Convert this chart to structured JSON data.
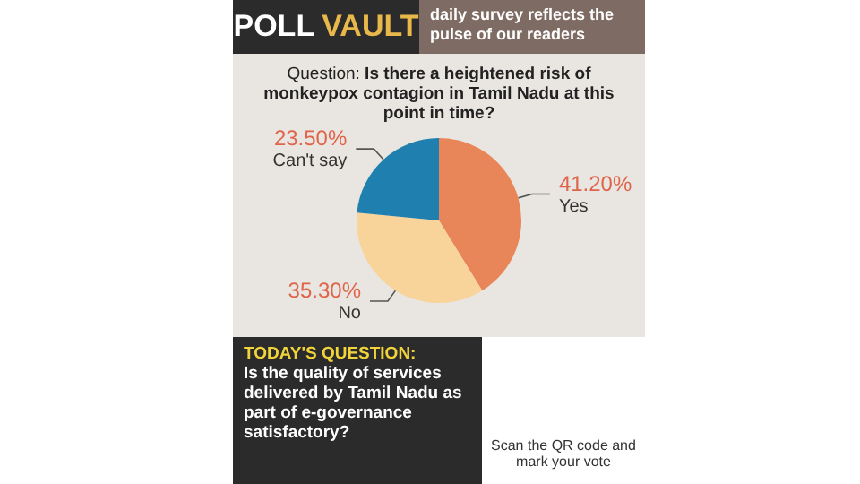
{
  "chart_data": {
    "type": "pie",
    "title": "POLL VAULT",
    "subtitle": "daily survey reflects the pulse of our readers",
    "annotations": [
      "Question: Is there a heightened risk of monkeypox contagion in Tamil Nadu at this point in time?",
      "TODAY'S QUESTION:",
      "Is the quality of services delivered by Tamil Nadu as part of e-governance satisfactory?",
      "Scan the QR code and mark your vote"
    ],
    "categories": [
      "Yes",
      "No",
      "Can't say"
    ],
    "values": [
      41.2,
      35.3,
      23.5
    ],
    "value_labels": [
      "41.20%",
      "35.30%",
      "23.50%"
    ],
    "colors": [
      "#e8865a",
      "#f9d49a",
      "#1f7fae"
    ],
    "legend": false
  }
}
